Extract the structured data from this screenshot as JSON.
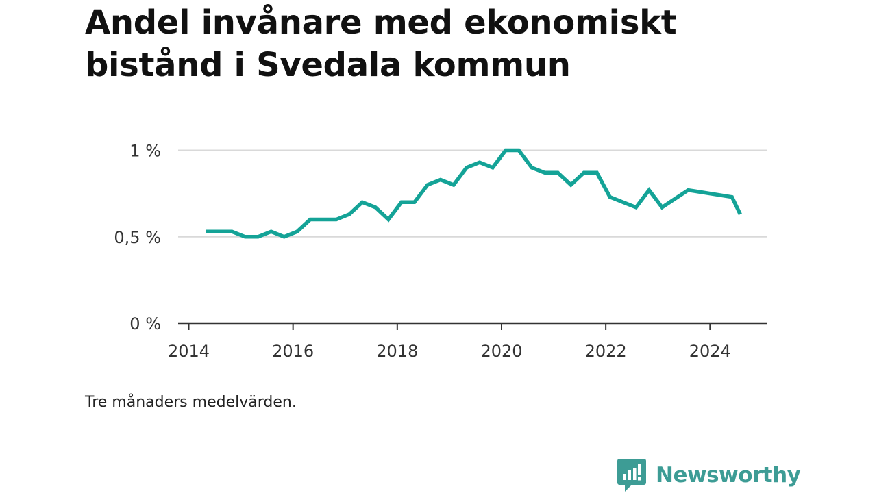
{
  "title": "Andel invånare med ekonomiskt bistånd i Svedala kommun",
  "note": "Tre månaders medelvärden.",
  "logo": {
    "text": "Newsworthy",
    "icon": "bar-chart-speech-bubble-icon"
  },
  "colors": {
    "line": "#14a397",
    "logo": "#3d9c95",
    "grid": "#d9d9d9",
    "axis": "#333333"
  },
  "chart_data": {
    "type": "line",
    "title": "Andel invånare med ekonomiskt bistånd i Svedala kommun",
    "xlabel": "",
    "ylabel": "",
    "xlim": [
      2014,
      2025.1
    ],
    "ylim": [
      0,
      1
    ],
    "x_ticks": [
      2014,
      2016,
      2018,
      2020,
      2022,
      2024
    ],
    "x_tick_labels": [
      "2014",
      "2016",
      "2018",
      "2020",
      "2022",
      "2024"
    ],
    "y_ticks": [
      0,
      0.5,
      1
    ],
    "y_tick_labels": [
      "0 %",
      "0,5 %",
      "1 %"
    ],
    "grid": true,
    "legend": "none",
    "series": [
      {
        "x": [
          2014.33,
          2014.58,
          2014.83,
          2015.08,
          2015.33,
          2015.58,
          2015.83,
          2016.08,
          2016.33,
          2016.58,
          2016.83,
          2017.08,
          2017.33,
          2017.58,
          2017.83,
          2018.08,
          2018.33,
          2018.58,
          2018.83,
          2019.08,
          2019.33,
          2019.58,
          2019.83,
          2020.08,
          2020.33,
          2020.58,
          2020.83,
          2021.08,
          2021.33,
          2021.58,
          2021.83,
          2022.08,
          2022.33,
          2022.58,
          2022.83,
          2023.08,
          2023.33,
          2023.58,
          2024.42,
          2024.58
        ],
        "values": [
          0.53,
          0.53,
          0.53,
          0.5,
          0.5,
          0.53,
          0.5,
          0.53,
          0.6,
          0.6,
          0.6,
          0.63,
          0.7,
          0.67,
          0.6,
          0.7,
          0.7,
          0.8,
          0.83,
          0.8,
          0.9,
          0.93,
          0.9,
          1.0,
          1.0,
          0.9,
          0.87,
          0.87,
          0.8,
          0.87,
          0.87,
          0.73,
          0.7,
          0.67,
          0.77,
          0.67,
          0.72,
          0.77,
          0.73,
          0.63
        ]
      }
    ]
  }
}
